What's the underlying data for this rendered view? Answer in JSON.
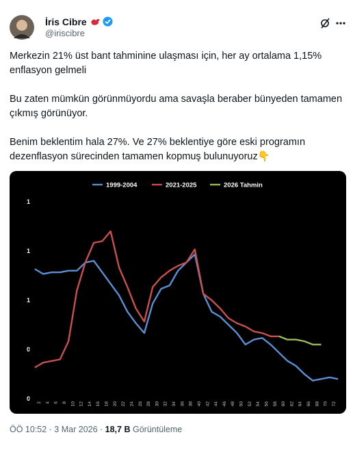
{
  "author": {
    "name": "İris Cibre",
    "handle": "@iriscibre"
  },
  "paragraphs": [
    "Merkezin 21% üst bant tahminine ulaşması için, her ay ortalama 1,15% enflasyon gelmeli",
    "Bu zaten mümkün görünmüyordu ama savaşla beraber bünyeden tamamen çıkmış görünüyor.",
    "Benim beklentim hala 27%. Ve 27% beklentiye göre eski programın dezenflasyon sürecinden tamamen kopmuş bulunuyoruz👇"
  ],
  "footer": {
    "time": "ÖÖ 10:52 · 3 Mar 2026 · ",
    "views": "18,7 B",
    "views_label": "Görüntüleme"
  },
  "chart_data": {
    "type": "line",
    "xlim": [
      0,
      74
    ],
    "xticks": [
      2,
      4,
      6,
      8,
      10,
      12,
      14,
      16,
      18,
      20,
      22,
      24,
      26,
      28,
      30,
      32,
      34,
      36,
      38,
      40,
      42,
      44,
      46,
      48,
      50,
      52,
      54,
      56,
      58,
      60,
      62,
      64,
      66,
      68,
      70,
      72
    ],
    "ylim": [
      0,
      1.25
    ],
    "yticks": [
      0,
      {
        "value": 0.3,
        "label": "0"
      },
      {
        "value": 0.6,
        "label": "1"
      },
      {
        "value": 0.9,
        "label": "1"
      },
      {
        "value": 1.2,
        "label": "1"
      }
    ],
    "legend": "top",
    "series": [
      {
        "name": "1999-2004",
        "color": "#5b8fd6",
        "x": [
          1,
          3,
          5,
          7,
          9,
          11,
          13,
          15,
          17,
          19,
          21,
          23,
          25,
          27,
          29,
          31,
          33,
          35,
          37,
          39,
          41,
          43,
          45,
          47,
          49,
          51,
          53,
          55,
          57,
          59,
          61,
          63,
          65,
          67,
          69,
          71,
          73
        ],
        "values": [
          0.79,
          0.76,
          0.77,
          0.77,
          0.78,
          0.78,
          0.83,
          0.84,
          0.77,
          0.7,
          0.63,
          0.53,
          0.46,
          0.4,
          0.58,
          0.67,
          0.69,
          0.78,
          0.83,
          0.88,
          0.64,
          0.53,
          0.5,
          0.45,
          0.4,
          0.33,
          0.36,
          0.37,
          0.33,
          0.28,
          0.23,
          0.2,
          0.15,
          0.11,
          0.12,
          0.13,
          0.12
        ]
      },
      {
        "name": "2021-2025",
        "color": "#c9504d",
        "x": [
          1,
          3,
          5,
          7,
          9,
          11,
          13,
          15,
          17,
          19,
          21,
          23,
          25,
          27,
          29,
          31,
          33,
          35,
          37,
          39,
          41,
          43,
          45,
          47,
          49,
          51,
          53,
          55,
          57,
          59
        ],
        "values": [
          0.19,
          0.22,
          0.23,
          0.24,
          0.35,
          0.66,
          0.83,
          0.95,
          0.96,
          1.02,
          0.8,
          0.68,
          0.55,
          0.47,
          0.68,
          0.74,
          0.78,
          0.81,
          0.83,
          0.91,
          0.64,
          0.6,
          0.55,
          0.49,
          0.46,
          0.44,
          0.41,
          0.4,
          0.38,
          0.38
        ]
      },
      {
        "name": "2026 Tahmin",
        "color": "#9bbb59",
        "x": [
          59,
          61,
          63,
          65,
          67,
          69
        ],
        "values": [
          0.38,
          0.36,
          0.36,
          0.35,
          0.33,
          0.33
        ]
      }
    ]
  }
}
